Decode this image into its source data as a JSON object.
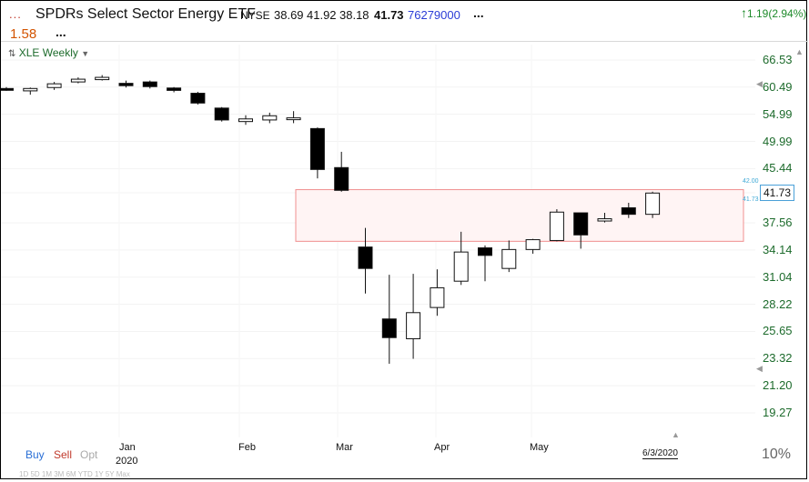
{
  "header": {
    "dots_left": "...",
    "title": "SPDRs Select Sector Energy ETF",
    "exchange": "NYSE",
    "open": "38.69",
    "high": "41.92",
    "low": "38.18",
    "close": "41.73",
    "volume": "76279000",
    "more": "...",
    "change": "1.19(2.94%)",
    "last_change": "1.58",
    "last_more": "...",
    "change_color": "#1d8a2a"
  },
  "legend": {
    "label": "XLE Weekly",
    "icon": "chart-icon"
  },
  "price_axis": [
    "66.53",
    "60.49",
    "54.99",
    "49.99",
    "45.44",
    "41.73",
    "37.56",
    "34.14",
    "31.04",
    "28.22",
    "25.65",
    "23.32",
    "21.20",
    "19.27"
  ],
  "price_label": "41.73",
  "band_mini": {
    "top": "42.00",
    "bottom": "41.73"
  },
  "months": [
    "Jan",
    "Feb",
    "Mar",
    "Apr",
    "May"
  ],
  "year": "2020",
  "date_tag": "6/3/2020",
  "trade_buttons": {
    "buy": "Buy",
    "sell": "Sell",
    "opt": "Opt"
  },
  "bottom_pct": "10%",
  "timeframes": "1D 5D 1M 3M 6M YTD 1Y 5Y Max",
  "colors": {
    "up": "#ffffff",
    "down": "#000000",
    "band_fill": "#fff4f4",
    "band_stroke": "#f08f8f",
    "axis_text": "#1d6b2c"
  },
  "chart_data": {
    "type": "candlestick",
    "scale": "log",
    "ylim": [
      19.27,
      66.53
    ],
    "band": [
      35.2,
      42.2
    ],
    "candles": [
      {
        "o": 60.2,
        "h": 60.5,
        "l": 59.7,
        "c": 60.0
      },
      {
        "o": 59.7,
        "h": 60.4,
        "l": 58.9,
        "c": 60.2
      },
      {
        "o": 60.4,
        "h": 61.6,
        "l": 59.9,
        "c": 61.2
      },
      {
        "o": 61.6,
        "h": 62.6,
        "l": 61.3,
        "c": 62.2
      },
      {
        "o": 62.1,
        "h": 63.1,
        "l": 61.9,
        "c": 62.6
      },
      {
        "o": 61.3,
        "h": 61.9,
        "l": 60.4,
        "c": 60.8
      },
      {
        "o": 61.6,
        "h": 61.9,
        "l": 60.2,
        "c": 60.6
      },
      {
        "o": 60.3,
        "h": 60.5,
        "l": 59.4,
        "c": 59.8
      },
      {
        "o": 59.2,
        "h": 59.5,
        "l": 56.9,
        "c": 57.2
      },
      {
        "o": 56.2,
        "h": 56.4,
        "l": 53.6,
        "c": 53.9
      },
      {
        "o": 53.6,
        "h": 54.8,
        "l": 53.0,
        "c": 54.1
      },
      {
        "o": 53.9,
        "h": 55.3,
        "l": 53.3,
        "c": 54.7
      },
      {
        "o": 54.1,
        "h": 55.6,
        "l": 53.3,
        "c": 54.3
      },
      {
        "o": 52.3,
        "h": 52.5,
        "l": 43.9,
        "c": 45.3
      },
      {
        "o": 45.6,
        "h": 48.2,
        "l": 41.9,
        "c": 42.1
      },
      {
        "o": 34.5,
        "h": 36.9,
        "l": 29.3,
        "c": 32.0
      },
      {
        "o": 26.8,
        "h": 31.3,
        "l": 22.9,
        "c": 25.1
      },
      {
        "o": 25.0,
        "h": 31.4,
        "l": 23.3,
        "c": 27.4
      },
      {
        "o": 27.9,
        "h": 31.9,
        "l": 27.1,
        "c": 29.9
      },
      {
        "o": 30.6,
        "h": 36.4,
        "l": 30.2,
        "c": 33.9
      },
      {
        "o": 34.4,
        "h": 34.7,
        "l": 30.6,
        "c": 33.5
      },
      {
        "o": 32.0,
        "h": 35.3,
        "l": 31.6,
        "c": 34.2
      },
      {
        "o": 34.2,
        "h": 35.5,
        "l": 33.7,
        "c": 35.4
      },
      {
        "o": 35.3,
        "h": 39.4,
        "l": 35.2,
        "c": 39.0
      },
      {
        "o": 38.9,
        "h": 38.9,
        "l": 34.3,
        "c": 36.0
      },
      {
        "o": 37.8,
        "h": 38.9,
        "l": 37.6,
        "c": 38.1
      },
      {
        "o": 39.6,
        "h": 40.3,
        "l": 38.2,
        "c": 38.7
      },
      {
        "o": 38.7,
        "h": 41.9,
        "l": 38.2,
        "c": 41.7
      }
    ]
  }
}
